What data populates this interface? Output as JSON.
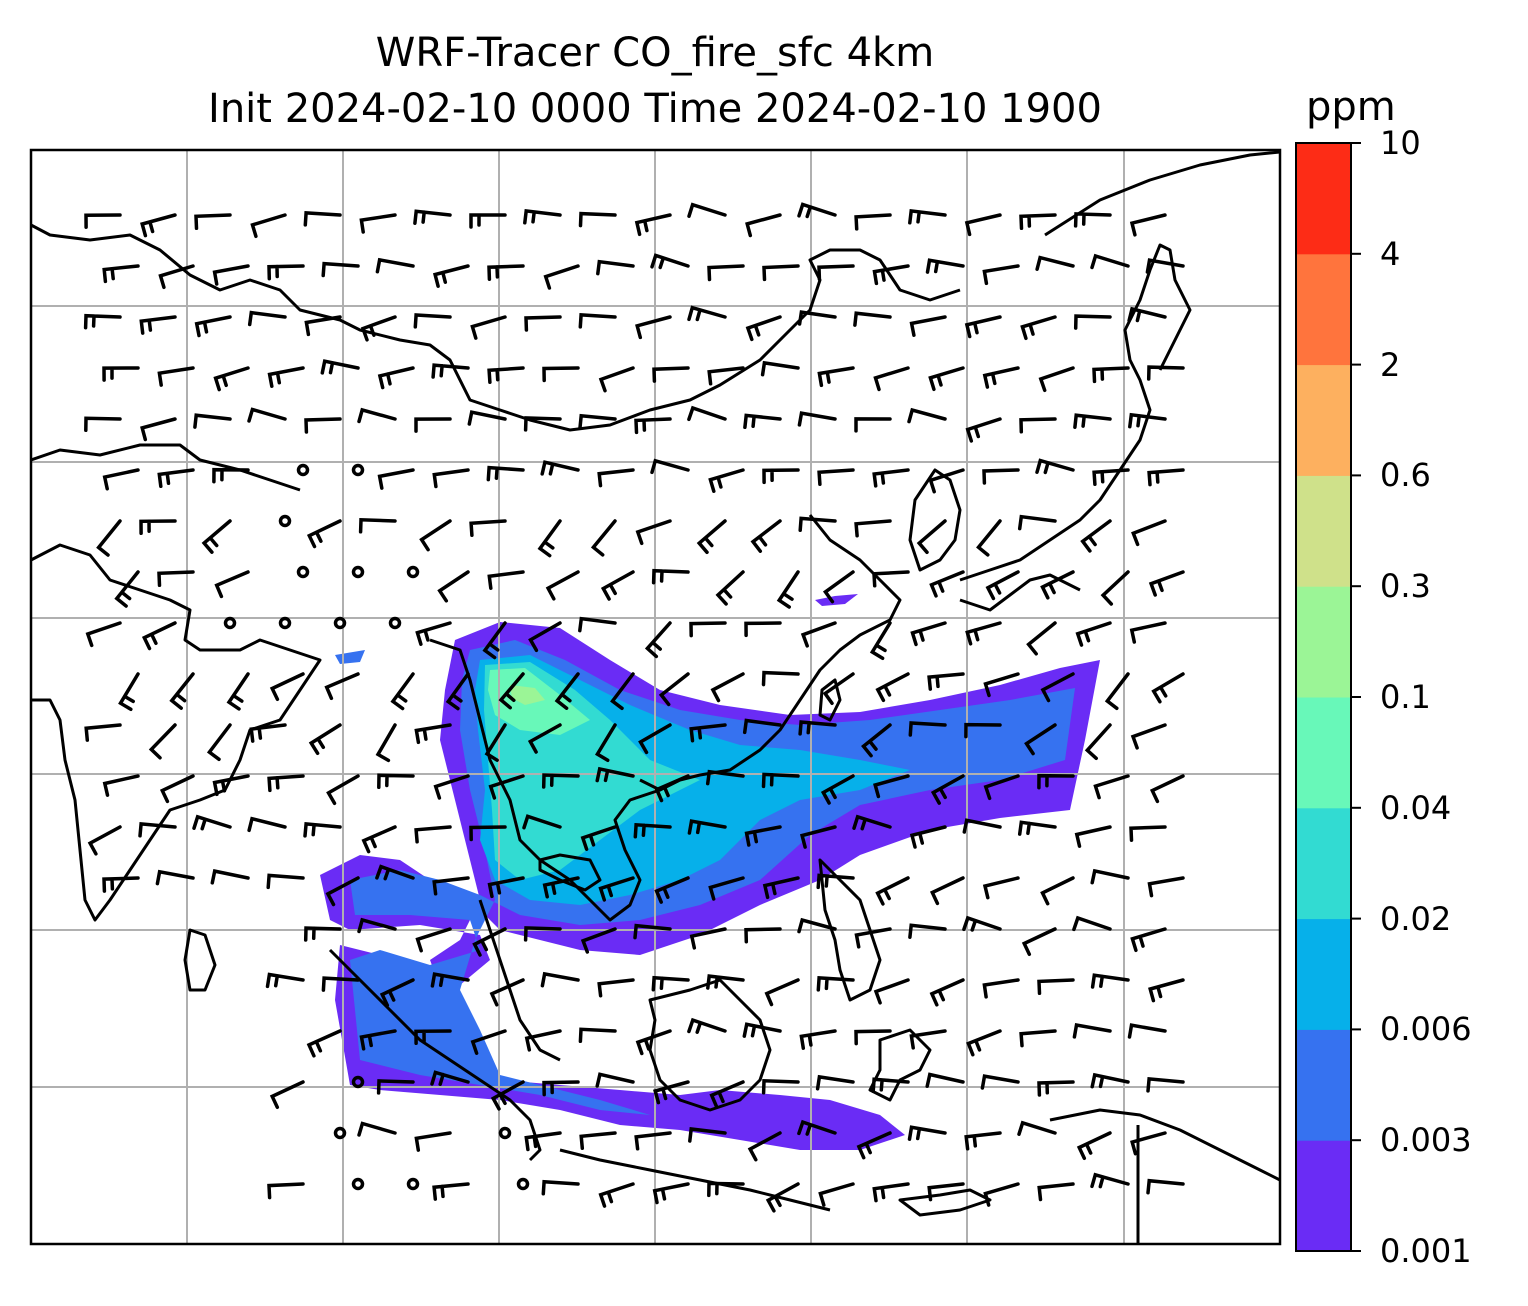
{
  "title": {
    "line1": "WRF-Tracer CO_fire_sfc 4km",
    "line2": "Init 2024-02-10 0000 Time 2024-02-10 1900"
  },
  "colorbar": {
    "units": "ppm",
    "ticks": [
      "0.001",
      "0.003",
      "0.006",
      "0.02",
      "0.04",
      "0.1",
      "0.3",
      "0.6",
      "2",
      "4",
      "10"
    ],
    "colors": [
      "#6a2cf5",
      "#3672f0",
      "#06b0ea",
      "#32dbd2",
      "#68f8b9",
      "#9bf596",
      "#cfe18a",
      "#fdb05f",
      "#ff743d",
      "#fd2c16"
    ]
  },
  "map": {
    "field": "CO_fire_sfc",
    "coastline_color": "#000000",
    "gridline_color": "#b0b0b0"
  }
}
